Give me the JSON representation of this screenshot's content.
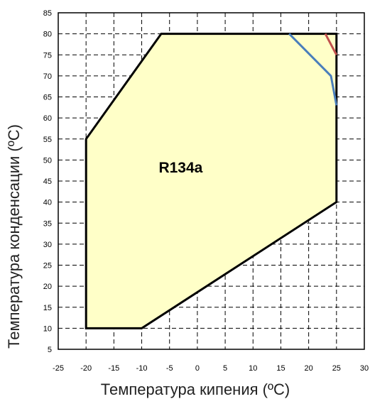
{
  "chart_data": {
    "type": "area",
    "xlabel": "Температура кипения (ºC)",
    "ylabel": "Температура конденсации (ºC)",
    "xlim": [
      -25,
      30
    ],
    "ylim": [
      5,
      85
    ],
    "x_ticks": [
      "-25",
      "-20",
      "-15",
      "-10",
      "-5",
      "0",
      "5",
      "10",
      "15",
      "20",
      "25",
      "30"
    ],
    "y_ticks": [
      "5",
      "10",
      "15",
      "20",
      "25",
      "30",
      "35",
      "40",
      "45",
      "50",
      "55",
      "60",
      "65",
      "70",
      "75",
      "80",
      "85"
    ],
    "grid": true,
    "grid_style": "dashed",
    "annotation": "R134a",
    "annotation_at": [
      -3,
      47
    ],
    "series": [
      {
        "kind": "envelope",
        "fill": "#ffffc8",
        "stroke": "#000000",
        "points": [
          [
            -20,
            10
          ],
          [
            -10,
            10
          ],
          [
            25,
            40
          ],
          [
            25,
            80
          ],
          [
            -6.5,
            80
          ],
          [
            -20,
            55
          ]
        ]
      },
      {
        "kind": "line",
        "color": "#4a7ebb",
        "points": [
          [
            16.5,
            80
          ],
          [
            24,
            70
          ],
          [
            25,
            63
          ]
        ]
      },
      {
        "kind": "line",
        "color": "#c0504d",
        "points": [
          [
            23,
            80
          ],
          [
            25,
            75
          ]
        ]
      }
    ]
  }
}
